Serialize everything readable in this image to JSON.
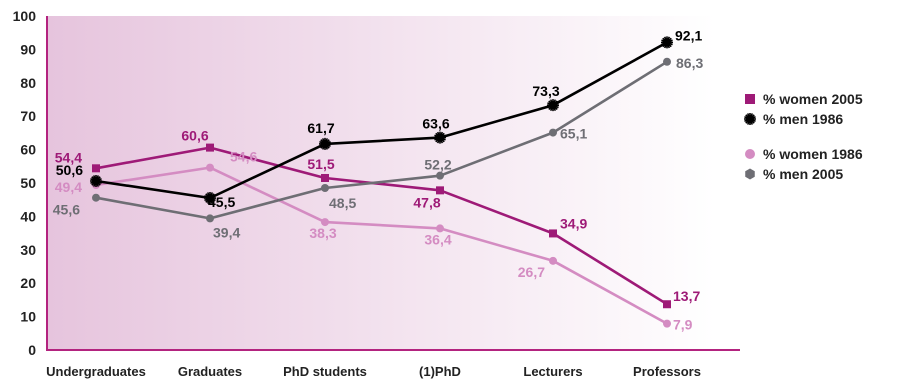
{
  "chart_data": {
    "type": "line",
    "categories": [
      "Undergraduates",
      "Graduates",
      "PhD students",
      "(1)PhD",
      "Lecturers",
      "Professors"
    ],
    "ylim": [
      0,
      100
    ],
    "yticks": [
      "0",
      "10",
      "20",
      "30",
      "40",
      "50",
      "60",
      "70",
      "80",
      "90",
      "100"
    ],
    "legend_position": "right",
    "series": [
      {
        "name": "% women 2005",
        "values": [
          54.4,
          60.6,
          51.5,
          47.8,
          34.9,
          13.7
        ],
        "labels": [
          "54,4",
          "60,6",
          "51,5",
          "47,8",
          "34,9",
          "13,7"
        ],
        "color": "#9e1a77",
        "marker": "square"
      },
      {
        "name": "% men 1986",
        "values": [
          50.6,
          45.5,
          61.7,
          63.6,
          73.3,
          92.1
        ],
        "labels": [
          "50,6",
          "45,5",
          "61,7",
          "63,6",
          "73,3",
          "92,1"
        ],
        "color": "#000000",
        "marker": "star"
      },
      {
        "name": "% women 1986",
        "values": [
          49.4,
          54.6,
          38.3,
          36.4,
          26.7,
          7.9
        ],
        "labels": [
          "49,4",
          "54,6",
          "38,3",
          "36,4",
          "26,7",
          "7,9"
        ],
        "color": "#d48cc2",
        "marker": "circle"
      },
      {
        "name": "% men 2005",
        "values": [
          45.6,
          39.4,
          48.5,
          52.2,
          65.1,
          86.3
        ],
        "labels": [
          "45,6",
          "39,4",
          "48,5",
          "52,2",
          "65,1",
          "86,3"
        ],
        "color": "#6e6e74",
        "marker": "circle"
      }
    ]
  }
}
